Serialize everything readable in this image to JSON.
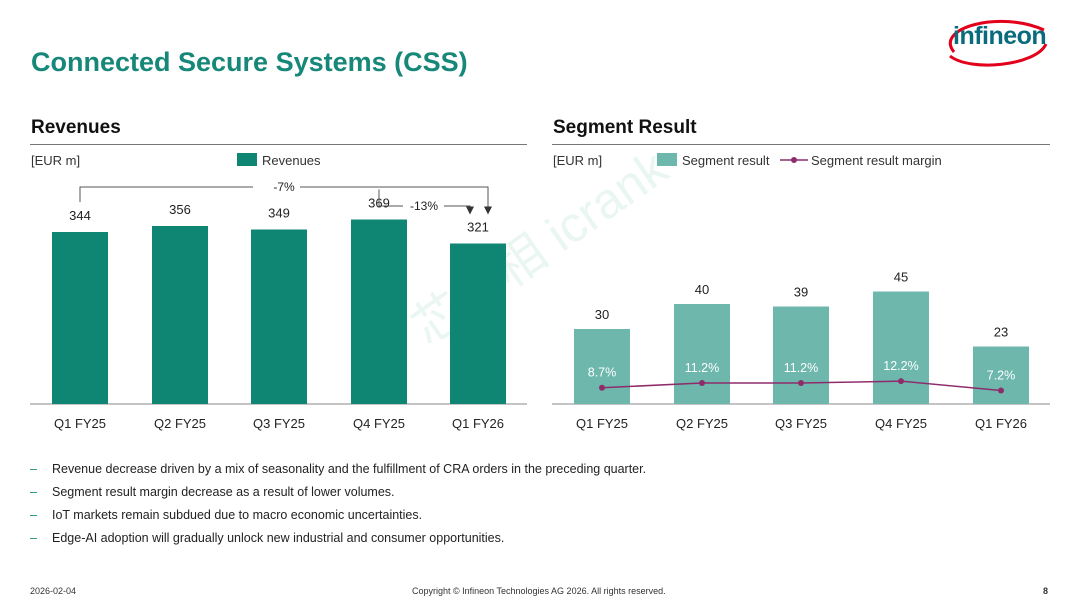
{
  "page": {
    "title": "Connected Secure Systems (CSS)",
    "logo_text": "infineon",
    "watermark": "芯世相 icrank",
    "date": "2026-02-04",
    "copyright": "Copyright © Infineon Technologies AG 2026. All rights reserved.",
    "page_number": "8"
  },
  "colors": {
    "brand": "#168779",
    "bar_dark": "#0f8574",
    "bar_light": "#6db7ad",
    "margin_line": "#8e2c6b",
    "logo_arc": "#e2001a"
  },
  "bullets": [
    "Revenue decrease driven by a mix of seasonality and the fulfillment of CRA orders in the preceding quarter.",
    "Segment result margin decrease as a result of lower volumes.",
    "IoT markets remain subdued due to macro economic uncertainties.",
    "Edge-AI adoption will gradually unlock new industrial and consumer opportunities."
  ],
  "chart_data": [
    {
      "type": "bar",
      "title": "Revenues",
      "unit": "[EUR m]",
      "legend": [
        "Revenues"
      ],
      "categories": [
        "Q1 FY25",
        "Q2 FY25",
        "Q3 FY25",
        "Q4 FY25",
        "Q1 FY26"
      ],
      "values": [
        344,
        356,
        349,
        369,
        321
      ],
      "data_labels": [
        "344",
        "356",
        "349",
        "369",
        "321"
      ],
      "annotations": [
        {
          "label": "-7%",
          "from": "Q1 FY25",
          "to": "Q1 FY26"
        },
        {
          "label": "-13%",
          "from": "Q4 FY25",
          "to": "Q1 FY26"
        }
      ],
      "ylim": [
        0,
        400
      ]
    },
    {
      "type": "bar",
      "title": "Segment Result",
      "unit": "[EUR m]",
      "legend": [
        "Segment result",
        "Segment result margin"
      ],
      "categories": [
        "Q1 FY25",
        "Q2 FY25",
        "Q3 FY25",
        "Q4 FY25",
        "Q1 FY26"
      ],
      "series": [
        {
          "name": "Segment result",
          "values": [
            30,
            40,
            39,
            45,
            23
          ],
          "labels": [
            "30",
            "40",
            "39",
            "45",
            "23"
          ]
        },
        {
          "name": "Segment result margin",
          "type": "line",
          "values": [
            8.7,
            11.2,
            11.2,
            12.2,
            7.2
          ],
          "labels": [
            "8.7%",
            "11.2%",
            "11.2%",
            "12.2%",
            "7.2%"
          ]
        }
      ],
      "ylim": [
        0,
        75
      ]
    }
  ]
}
